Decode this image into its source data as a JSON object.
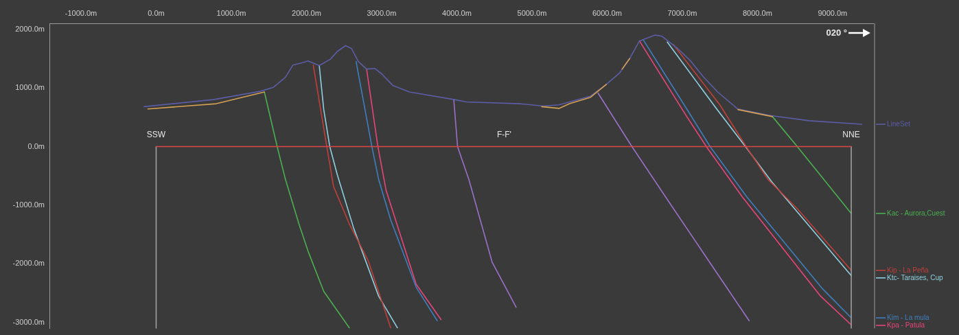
{
  "chart_data": {
    "type": "line",
    "marker": "none",
    "xlim": [
      -1420,
      9540
    ],
    "ylim": [
      -3100,
      2100
    ],
    "xticks": [
      {
        "value": -1000,
        "label": "-1000.0m"
      },
      {
        "value": 0,
        "label": "0.0m"
      },
      {
        "value": 1000,
        "label": "1000.0m"
      },
      {
        "value": 2000,
        "label": "2000.0m"
      },
      {
        "value": 3000,
        "label": "3000.0m"
      },
      {
        "value": 4000,
        "label": "4000.0m"
      },
      {
        "value": 5000,
        "label": "5000.0m"
      },
      {
        "value": 6000,
        "label": "6000.0m"
      },
      {
        "value": 7000,
        "label": "7000.0m"
      },
      {
        "value": 8000,
        "label": "8000.0m"
      },
      {
        "value": 9000,
        "label": "9000.0m"
      }
    ],
    "yticks": [
      {
        "value": -3000,
        "label": "-3000.0m"
      },
      {
        "value": -2000,
        "label": "-2000.0m"
      },
      {
        "value": -1000,
        "label": "-1000.0m"
      },
      {
        "value": 0,
        "label": "0.0m"
      },
      {
        "value": 1000,
        "label": "1000.0m"
      },
      {
        "value": 2000,
        "label": "2000.0m"
      }
    ],
    "series": [
      {
        "color": "#e04444",
        "x": [
          0,
          9248
        ],
        "values": [
          0,
          0
        ]
      },
      {
        "color": "#a0a0a0",
        "x": [
          0,
          0
        ],
        "values": [
          0,
          -3100
        ]
      },
      {
        "color": "#a0a0a0",
        "x": [
          9248,
          9248
        ],
        "values": [
          0,
          -3100
        ]
      },
      {
        "color": "#d4a054",
        "x": [
          -110,
          800,
          1440,
          1441,
          5130,
          5360,
          5500,
          5780,
          5990,
          5991,
          6200,
          6300,
          6301,
          7740,
          8200
        ],
        "values": [
          640,
          730,
          930,
          null,
          680,
          650,
          730,
          840,
          1060,
          null,
          1320,
          1500,
          null,
          630,
          510
        ]
      },
      {
        "name": "LineSet",
        "color": "#5b5ea6",
        "x": [
          -160,
          760,
          1380,
          1560,
          1720,
          1820,
          1950,
          2020,
          2170,
          2320,
          2410,
          2520,
          2600,
          2690,
          2800,
          2910,
          3000,
          3150,
          3370,
          3970,
          4130,
          4840,
          5150,
          5360,
          5780,
          5990,
          6170,
          6300,
          6430,
          6640,
          6730,
          6940,
          7110,
          7280,
          7470,
          7740,
          8170,
          8690,
          9390
        ],
        "values": [
          680,
          800,
          940,
          1010,
          1180,
          1390,
          1430,
          1460,
          1380,
          1490,
          1620,
          1720,
          1670,
          1450,
          1320,
          1330,
          1240,
          1040,
          930,
          800,
          760,
          730,
          690,
          710,
          860,
          1060,
          1260,
          1500,
          1800,
          1900,
          1880,
          1670,
          1460,
          1190,
          930,
          640,
          530,
          440,
          380
        ]
      },
      {
        "color": "#4caf50",
        "x": [
          1440,
          1610,
          1720,
          1900,
          2020,
          2230,
          2570
        ],
        "values": [
          930,
          0,
          -560,
          -1320,
          -1780,
          -2470,
          -3090
        ]
      },
      {
        "name": "Kac - Aurora,Cuest",
        "color": "#4caf50",
        "x": [
          8200,
          8530,
          9248
        ],
        "values": [
          510,
          0,
          -1140
        ]
      },
      {
        "color": "#c0403a",
        "x": [
          2090,
          2270,
          2360,
          2570,
          2820,
          3120
        ],
        "values": [
          1390,
          0,
          -680,
          -1320,
          -1940,
          -3090
        ]
      },
      {
        "name": "Kip - La Peña",
        "color": "#c0403a",
        "x": [
          6880,
          7500,
          7850,
          8140,
          8530,
          9248
        ],
        "values": [
          1740,
          710,
          0,
          -560,
          -1060,
          -2110
        ]
      },
      {
        "color": "#8fd0e0",
        "x": [
          2170,
          2230,
          2310,
          2410,
          2630,
          2960,
          3210
        ],
        "values": [
          1380,
          630,
          0,
          -480,
          -1400,
          -2550,
          -3090
        ]
      },
      {
        "name": "Ktc- Taraises, Cup",
        "color": "#8fd0e0",
        "x": [
          6800,
          7470,
          7840,
          8190,
          9248
        ],
        "values": [
          1780,
          620,
          0,
          -600,
          -2200
        ]
      },
      {
        "color": "#3f7fbf",
        "x": [
          2660,
          2870,
          2960,
          3120,
          3460,
          3740
        ],
        "values": [
          1450,
          0,
          -560,
          -1250,
          -2400,
          -2970
        ]
      },
      {
        "name": "Kim - La mula",
        "color": "#3f7fbf",
        "x": [
          6480,
          7070,
          7370,
          7860,
          8870,
          9248
        ],
        "values": [
          1820,
          620,
          0,
          -860,
          -2430,
          -2920
        ]
      },
      {
        "color": "#e8457a",
        "x": [
          2800,
          2950,
          3060,
          3460,
          3790
        ],
        "values": [
          1320,
          0,
          -750,
          -2350,
          -2950
        ]
      },
      {
        "name": "Kpa - Patula",
        "color": "#e8457a",
        "x": [
          6430,
          7050,
          7320,
          7800,
          8840,
          9248
        ],
        "values": [
          1800,
          530,
          0,
          -860,
          -2550,
          -3040
        ]
      },
      {
        "color": "#9a70c8",
        "x": [
          3960,
          4010,
          4160,
          4470,
          4790
        ],
        "values": [
          800,
          0,
          -560,
          -1970,
          -2740
        ]
      },
      {
        "color": "#9a70c8",
        "x": [
          5880,
          6330,
          6820,
          7890
        ],
        "values": [
          910,
          0,
          -940,
          -2970
        ]
      }
    ],
    "legend": "right",
    "annotations": [
      {
        "text": "SSW",
        "x": 0,
        "y": 0
      },
      {
        "text": "F-F'",
        "x": 4630,
        "y": 0
      },
      {
        "text": "NNE",
        "x": 9248,
        "y": 0
      },
      "020 °"
    ]
  }
}
